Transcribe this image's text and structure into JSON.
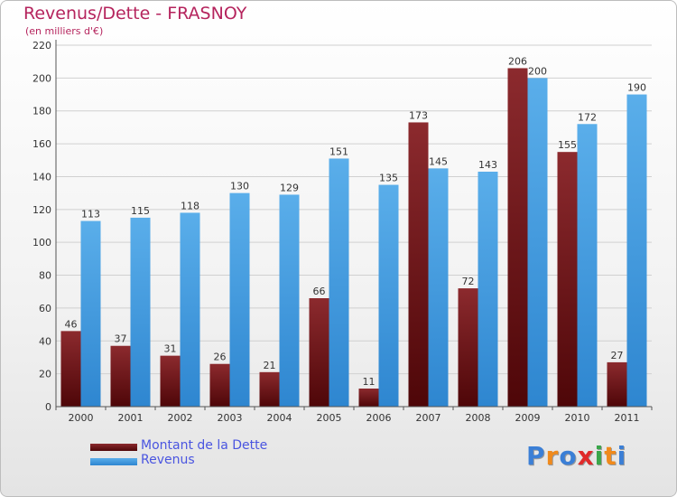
{
  "title": "Revenus/Dette - FRASNOY",
  "subtitle": "(en milliers d'€)",
  "logo": {
    "text": "Proxiti",
    "letters": [
      {
        "ch": "P",
        "color": "#3b7fd6"
      },
      {
        "ch": "r",
        "color": "#f08a1c"
      },
      {
        "ch": "o",
        "color": "#3b7fd6"
      },
      {
        "ch": "x",
        "color": "#e02a2a"
      },
      {
        "ch": "i",
        "color": "#3aa64a"
      },
      {
        "ch": "t",
        "color": "#f08a1c"
      },
      {
        "ch": "i",
        "color": "#3b7fd6"
      }
    ]
  },
  "legend": [
    {
      "label": "Montant de la Dette",
      "color": "#6b0f12"
    },
    {
      "label": "Revenus",
      "color": "#3d9be0"
    }
  ],
  "chart_data": {
    "type": "bar",
    "categories": [
      "2000",
      "2001",
      "2002",
      "2003",
      "2004",
      "2005",
      "2006",
      "2007",
      "2008",
      "2009",
      "2010",
      "2011"
    ],
    "series": [
      {
        "name": "Montant de la Dette",
        "color": "#7a1a1d",
        "values": [
          46,
          37,
          31,
          26,
          21,
          66,
          11,
          173,
          72,
          206,
          155,
          27
        ]
      },
      {
        "name": "Revenus",
        "color": "#4aa3e6",
        "values": [
          113,
          115,
          118,
          130,
          129,
          151,
          135,
          145,
          143,
          200,
          172,
          190
        ]
      }
    ],
    "ylim": [
      0,
      220
    ],
    "yticks": [
      0,
      20,
      40,
      60,
      80,
      100,
      120,
      140,
      160,
      180,
      200,
      220
    ],
    "grid": true,
    "legend_position": "bottom-left"
  }
}
